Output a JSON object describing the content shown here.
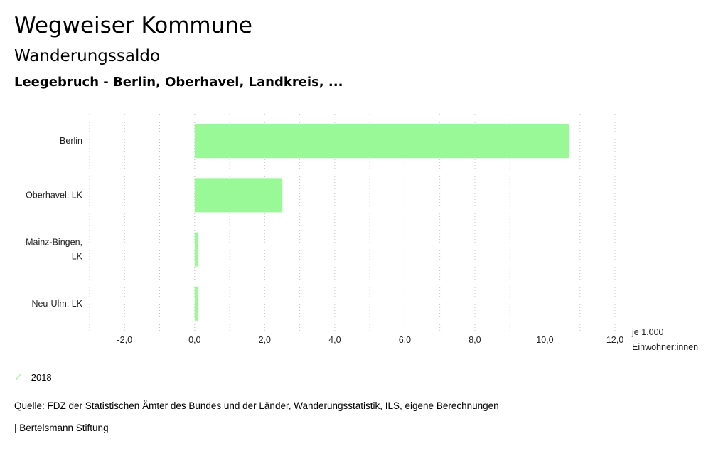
{
  "header": {
    "title": "Wegweiser Kommune",
    "subtitle": "Wanderungssaldo",
    "region": "Leegebruch - Berlin, Oberhavel, Landkreis, ..."
  },
  "chart_data": {
    "type": "bar",
    "orientation": "horizontal",
    "categories": [
      "Berlin",
      "Oberhavel, LK",
      "Mainz-Bingen, LK",
      "Neu-Ulm, LK"
    ],
    "series": [
      {
        "name": "2018",
        "values": [
          10.7,
          2.5,
          0.1,
          0.1
        ],
        "color": "#98f996"
      }
    ],
    "xlim": [
      -3.0,
      12.0
    ],
    "xticks": [
      -2.0,
      0.0,
      2.0,
      4.0,
      6.0,
      8.0,
      10.0,
      12.0
    ],
    "xtick_labels": [
      "-2,0",
      "0,0",
      "2,0",
      "4,0",
      "6,0",
      "8,0",
      "10,0",
      "12,0"
    ],
    "xlabel_lines": [
      "je 1.000",
      "Einwohner:innen"
    ],
    "grid": "vertical dotted",
    "legend_position": "bottom-left"
  },
  "legend": {
    "icon": "check-icon",
    "label": "2018"
  },
  "footer": {
    "source": "Quelle: FDZ der Statistischen Ämter des Bundes und der Länder, Wanderungsstatistik, ILS, eigene Berechnungen",
    "credit": "| Bertelsmann Stiftung"
  }
}
